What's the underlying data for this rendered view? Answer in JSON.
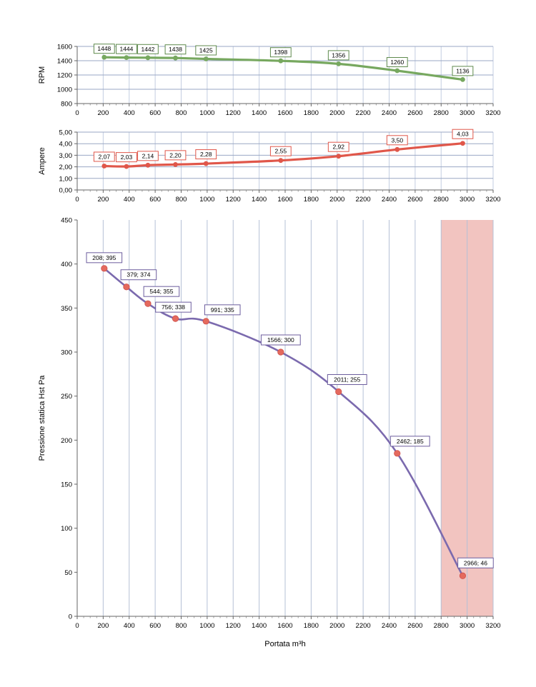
{
  "chart_data": [
    {
      "type": "line",
      "ylabel": "RPM",
      "xlabel": "",
      "xlim": [
        0,
        3200
      ],
      "ylim": [
        800,
        1600
      ],
      "xticks": [
        "0",
        "200",
        "400",
        "600",
        "800",
        "1000",
        "1200",
        "1400",
        "1600",
        "1800",
        "2000",
        "2200",
        "2400",
        "2600",
        "2800",
        "3000",
        "3200"
      ],
      "yticks": [
        "800",
        "1000",
        "1200",
        "1400",
        "1600"
      ],
      "grid": true,
      "color": "#77a85f",
      "label_border": "#5f8a4d",
      "series": [
        {
          "x": [
            208,
            379,
            544,
            756,
            991,
            1566,
            2011,
            2462,
            2966
          ],
          "y": [
            1448,
            1444,
            1442,
            1438,
            1425,
            1398,
            1356,
            1260,
            1136
          ],
          "labels": [
            "1448",
            "1444",
            "1442",
            "1438",
            "1425",
            "1398",
            "1356",
            "1260",
            "1136"
          ]
        }
      ]
    },
    {
      "type": "line",
      "ylabel": "Ampere",
      "xlabel": "",
      "xlim": [
        0,
        3200
      ],
      "ylim": [
        0,
        5
      ],
      "xticks": [
        "0",
        "200",
        "400",
        "600",
        "800",
        "1000",
        "1200",
        "1400",
        "1600",
        "1800",
        "2000",
        "2200",
        "2400",
        "2600",
        "2800",
        "3000",
        "3200"
      ],
      "yticks": [
        "0,00",
        "1,00",
        "2,00",
        "3,00",
        "4,00",
        "5,00"
      ],
      "grid": true,
      "color": "#e0574a",
      "label_border": "#e0574a",
      "series": [
        {
          "x": [
            208,
            379,
            544,
            756,
            991,
            1566,
            2011,
            2462,
            2966
          ],
          "y": [
            2.07,
            2.03,
            2.14,
            2.2,
            2.28,
            2.55,
            2.92,
            3.5,
            4.03
          ],
          "labels": [
            "2,07",
            "2,03",
            "2,14",
            "2,20",
            "2,28",
            "2,55",
            "2,92",
            "3,50",
            "4,03"
          ]
        }
      ]
    },
    {
      "type": "line",
      "ylabel": "Pressione statica Hst Pa",
      "xlabel": "Portata m³h",
      "xlim": [
        0,
        3200
      ],
      "ylim": [
        0,
        450
      ],
      "xticks": [
        "0",
        "200",
        "400",
        "600",
        "800",
        "1000",
        "1200",
        "1400",
        "1600",
        "1800",
        "2000",
        "2200",
        "2400",
        "2600",
        "2800",
        "3000",
        "3200"
      ],
      "yticks": [
        "0",
        "50",
        "100",
        "150",
        "200",
        "250",
        "300",
        "350",
        "400",
        "450"
      ],
      "grid": "vertical",
      "color": "#7b6aae",
      "point_color": "#e46a5e",
      "label_border": "#6c5d9e",
      "shaded_region": {
        "x": [
          2800,
          3200
        ],
        "color": "#f2c4c0"
      },
      "series": [
        {
          "x": [
            208,
            379,
            544,
            756,
            991,
            1566,
            2011,
            2462,
            2966
          ],
          "y": [
            395,
            374,
            355,
            338,
            335,
            300,
            255,
            185,
            46
          ],
          "labels": [
            "208; 395",
            "379; 374",
            "544; 355",
            "756; 338",
            "991; 335",
            "1566; 300",
            "2011; 255",
            "2462; 185",
            "2966; 46"
          ]
        }
      ]
    }
  ]
}
